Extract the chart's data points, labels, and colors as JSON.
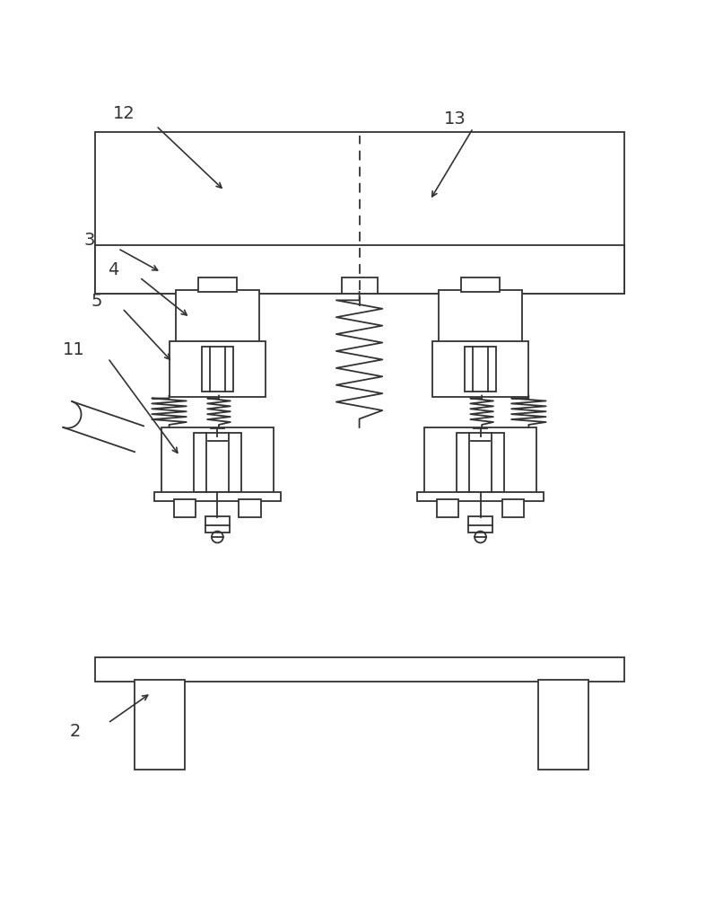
{
  "bg_color": "#ffffff",
  "line_color": "#333333",
  "fig_width": 8.06,
  "fig_height": 10.0,
  "labels": [
    "2",
    "3",
    "4",
    "5",
    "11",
    "12",
    "13"
  ]
}
